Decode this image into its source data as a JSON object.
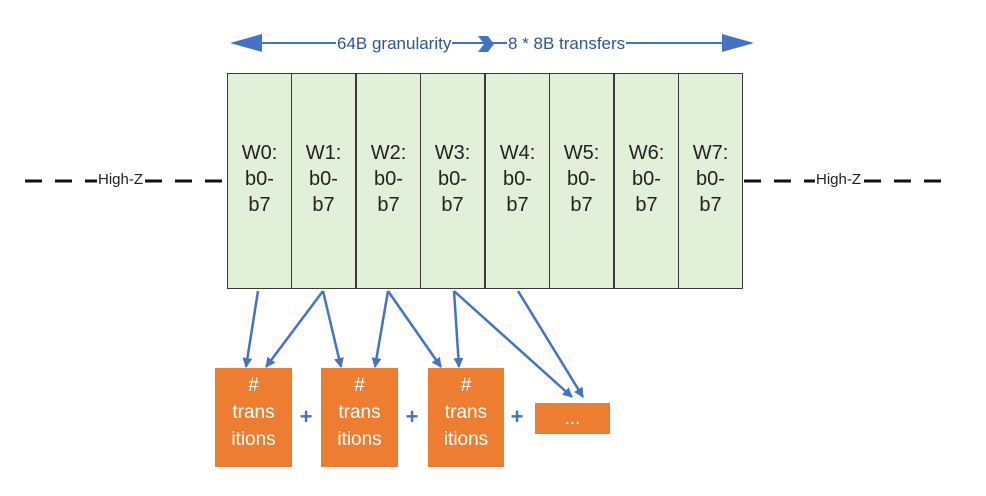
{
  "header": {
    "left_label": "64B granularity",
    "right_label": "8 * 8B transfers"
  },
  "bus": {
    "left_label": "High-Z",
    "right_label": "High-Z"
  },
  "words": [
    {
      "name": "W0:",
      "bytes": "b0-",
      "range_end": "b7"
    },
    {
      "name": "W1:",
      "bytes": "b0-",
      "range_end": "b7"
    },
    {
      "name": "W2:",
      "bytes": "b0-",
      "range_end": "b7"
    },
    {
      "name": "W3:",
      "bytes": "b0-",
      "range_end": "b7"
    },
    {
      "name": "W4:",
      "bytes": "b0-",
      "range_end": "b7"
    },
    {
      "name": "W5:",
      "bytes": "b0-",
      "range_end": "b7"
    },
    {
      "name": "W6:",
      "bytes": "b0-",
      "range_end": "b7"
    },
    {
      "name": "W7:",
      "bytes": "b0-",
      "range_end": "b7"
    }
  ],
  "transitions": [
    {
      "line1": "#",
      "line2": "trans",
      "line3": "itions"
    },
    {
      "line1": "#",
      "line2": "trans",
      "line3": "itions"
    },
    {
      "line1": "#",
      "line2": "trans",
      "line3": "itions"
    }
  ],
  "ellipsis": "...",
  "operator": "+",
  "colors": {
    "arrow": "#4472c4",
    "word_fill": "#e2efd9",
    "transition_fill": "#ed7d31",
    "title_text": "#2f5597"
  }
}
